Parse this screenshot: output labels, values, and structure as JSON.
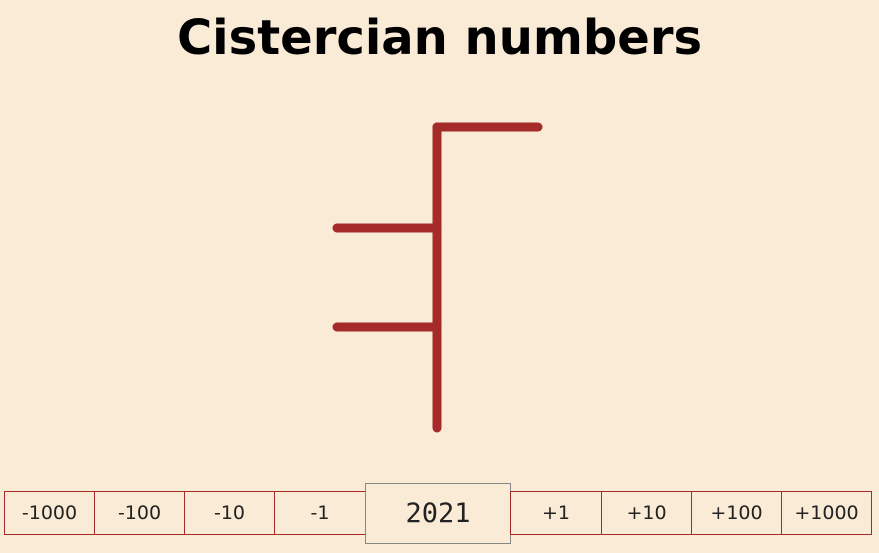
{
  "title": "Cistercian numbers",
  "value": "2021",
  "colors": {
    "background": "#faebd7",
    "stroke": "#a52a2a",
    "border": "#a52a2a"
  },
  "controls": {
    "decrement": [
      {
        "label": "-1000"
      },
      {
        "label": "-100"
      },
      {
        "label": "-10"
      },
      {
        "label": "-1"
      }
    ],
    "increment": [
      {
        "label": "+1"
      },
      {
        "label": "+10"
      },
      {
        "label": "+100"
      },
      {
        "label": "+1000"
      }
    ]
  }
}
